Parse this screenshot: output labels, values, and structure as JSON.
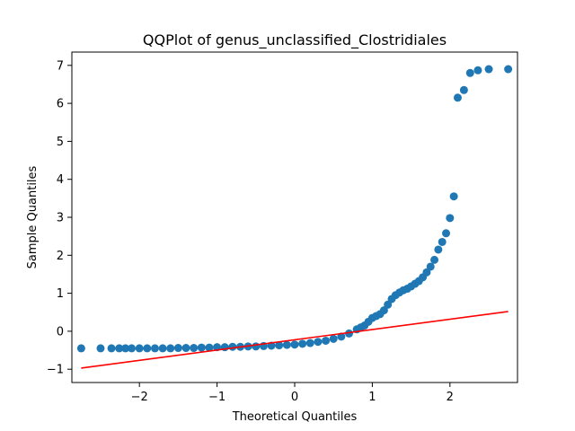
{
  "chart_data": {
    "type": "scatter",
    "title": "QQPlot of genus_unclassified_Clostridiales",
    "xlabel": "Theoretical Quantiles",
    "ylabel": "Sample Quantiles",
    "xlim": [
      -2.87,
      2.87
    ],
    "ylim": [
      -1.35,
      7.35
    ],
    "x_ticks": [
      -2,
      -1,
      0,
      1,
      2
    ],
    "x_tick_labels": [
      "−2",
      "−1",
      "0",
      "1",
      "2"
    ],
    "y_ticks": [
      -1,
      0,
      1,
      2,
      3,
      4,
      5,
      6,
      7
    ],
    "y_tick_labels": [
      "−1",
      "0",
      "1",
      "2",
      "3",
      "4",
      "5",
      "6",
      "7"
    ],
    "grid": false,
    "marker_color": "#1f77b4",
    "line_color": "#ff0000",
    "reference_line": {
      "x": [
        -2.75,
        2.75
      ],
      "y": [
        -0.97,
        0.52
      ]
    },
    "points": {
      "x": [
        -2.75,
        -2.5,
        -2.36,
        -2.26,
        -2.18,
        -2.1,
        -2.0,
        -1.9,
        -1.8,
        -1.7,
        -1.6,
        -1.5,
        -1.4,
        -1.3,
        -1.2,
        -1.1,
        -1.0,
        -0.9,
        -0.8,
        -0.7,
        -0.6,
        -0.5,
        -0.4,
        -0.3,
        -0.2,
        -0.1,
        0.0,
        0.1,
        0.2,
        0.3,
        0.4,
        0.5,
        0.6,
        0.7,
        0.8,
        0.85,
        0.9,
        0.95,
        1.0,
        1.05,
        1.1,
        1.15,
        1.2,
        1.25,
        1.3,
        1.35,
        1.4,
        1.45,
        1.5,
        1.55,
        1.6,
        1.65,
        1.7,
        1.75,
        1.8,
        1.85,
        1.9,
        1.95,
        2.0,
        2.05,
        2.1,
        2.18,
        2.26,
        2.36,
        2.5,
        2.75
      ],
      "y": [
        -0.45,
        -0.45,
        -0.45,
        -0.45,
        -0.45,
        -0.45,
        -0.45,
        -0.45,
        -0.45,
        -0.45,
        -0.45,
        -0.44,
        -0.44,
        -0.44,
        -0.43,
        -0.43,
        -0.42,
        -0.42,
        -0.41,
        -0.41,
        -0.4,
        -0.4,
        -0.39,
        -0.38,
        -0.37,
        -0.36,
        -0.35,
        -0.33,
        -0.31,
        -0.28,
        -0.25,
        -0.2,
        -0.14,
        -0.06,
        0.05,
        0.1,
        0.15,
        0.25,
        0.35,
        0.4,
        0.45,
        0.55,
        0.7,
        0.85,
        0.95,
        1.02,
        1.08,
        1.12,
        1.18,
        1.25,
        1.32,
        1.42,
        1.55,
        1.7,
        1.88,
        2.15,
        2.35,
        2.58,
        2.98,
        3.55,
        6.15,
        6.35,
        6.8,
        6.87,
        6.9,
        6.9
      ]
    }
  }
}
